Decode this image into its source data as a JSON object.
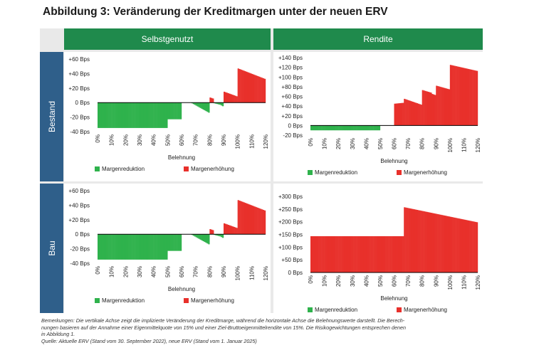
{
  "title": "Abbildung 3: Veränderung der Kreditmargen unter der neuen ERV",
  "columns": [
    "Selbstgenutzt",
    "Rendite"
  ],
  "rows": [
    "Bestand",
    "Bau"
  ],
  "colors": {
    "reduction": "#2fb24c",
    "increase": "#e8302b",
    "header_green": "#1f8a4c",
    "header_blue": "#2f5f8a"
  },
  "notes": {
    "line1": "Bemerkungen: Die vertikale Achse zeigt die implizierte Veränderung der Kreditmarge, während die horizontale Achse die Belehnungswerte darstellt. Die Berech-",
    "line2": "nungen basieren auf der Annahme einer Eigenmittelquote von 15% und einer Ziel-Bruttoeigenmittelrendite von 15%. Die Risikogewichtungen entsprechen denen",
    "line3": "in Abbildung 1.",
    "line4": "Quelle: Aktuelle ERV (Stand vom 30. September 2022), neue ERV (Stand vom 1. Januar 2025)"
  },
  "chart_data": [
    {
      "id": "bestand-selbstgenutzt",
      "type": "bar",
      "xlabel": "Belehnung",
      "ylim": [
        -40,
        60
      ],
      "yticks": [
        -40,
        -20,
        0,
        20,
        40,
        60
      ],
      "ytick_labels": [
        "-40 Bps",
        "-20 Bps",
        "0 Bps",
        "+20 Bps",
        "+40 Bps",
        "+60 Bps"
      ],
      "xlim": [
        0,
        120
      ],
      "xticks": [
        0,
        10,
        20,
        30,
        40,
        50,
        60,
        70,
        80,
        90,
        100,
        110,
        120
      ],
      "xtick_labels": [
        "0%",
        "10%",
        "20%",
        "30%",
        "40%",
        "50%",
        "60%",
        "70%",
        "80%",
        "90%",
        "100%",
        "110%",
        "120%"
      ],
      "legend": [
        "Margenreduktion",
        "Margenerhöhung"
      ],
      "segments": [
        {
          "x0": 0,
          "x1": 50,
          "y0": -35,
          "y1": -35
        },
        {
          "x0": 50,
          "x1": 60,
          "y0": -23,
          "y1": -23
        },
        {
          "x0": 67,
          "x1": 80,
          "y0": -1,
          "y1": -15
        },
        {
          "x0": 80,
          "x1": 83,
          "y0": 7,
          "y1": 5
        },
        {
          "x0": 83,
          "x1": 87,
          "y0": -1,
          "y1": -3
        },
        {
          "x0": 87,
          "x1": 90,
          "y0": -3,
          "y1": -6
        },
        {
          "x0": 90,
          "x1": 100,
          "y0": 15,
          "y1": 8
        },
        {
          "x0": 100,
          "x1": 120,
          "y0": 47,
          "y1": 32
        }
      ]
    },
    {
      "id": "bestand-rendite",
      "type": "bar",
      "xlabel": "Belehnung",
      "ylim": [
        -20,
        140
      ],
      "yticks": [
        -20,
        0,
        20,
        40,
        60,
        80,
        100,
        120,
        140
      ],
      "ytick_labels": [
        "-20 Bps",
        "0 Bps",
        "+20 Bps",
        "+40 Bps",
        "+60 Bps",
        "+80 Bps",
        "+100 Bps",
        "+120 Bps",
        "+140 Bps"
      ],
      "xlim": [
        0,
        120
      ],
      "xticks": [
        0,
        10,
        20,
        30,
        40,
        50,
        60,
        70,
        80,
        90,
        100,
        110,
        120
      ],
      "xtick_labels": [
        "0%",
        "10%",
        "20%",
        "30%",
        "40%",
        "50%",
        "60%",
        "70%",
        "80%",
        "90%",
        "100%",
        "110%",
        "120%"
      ],
      "legend": [
        "Margenreduktion",
        "Margenerhöhung"
      ],
      "segments": [
        {
          "x0": 0,
          "x1": 50,
          "y0": -10,
          "y1": -10
        },
        {
          "x0": 60,
          "x1": 67,
          "y0": 45,
          "y1": 47
        },
        {
          "x0": 67,
          "x1": 80,
          "y0": 55,
          "y1": 42
        },
        {
          "x0": 80,
          "x1": 87,
          "y0": 73,
          "y1": 67
        },
        {
          "x0": 87,
          "x1": 90,
          "y0": 65,
          "y1": 62
        },
        {
          "x0": 90,
          "x1": 100,
          "y0": 82,
          "y1": 74
        },
        {
          "x0": 100,
          "x1": 120,
          "y0": 125,
          "y1": 112
        }
      ]
    },
    {
      "id": "bau-selbstgenutzt",
      "type": "bar",
      "xlabel": "Belehnung",
      "ylim": [
        -40,
        60
      ],
      "yticks": [
        -40,
        -20,
        0,
        20,
        40,
        60
      ],
      "ytick_labels": [
        "-40 Bps",
        "-20 Bps",
        "0 Bps",
        "+20 Bps",
        "+40 Bps",
        "+60 Bps"
      ],
      "xlim": [
        0,
        120
      ],
      "xticks": [
        0,
        10,
        20,
        30,
        40,
        50,
        60,
        70,
        80,
        90,
        100,
        110,
        120
      ],
      "xtick_labels": [
        "0%",
        "10%",
        "20%",
        "30%",
        "40%",
        "50%",
        "60%",
        "70%",
        "80%",
        "90%",
        "100%",
        "110%",
        "120%"
      ],
      "legend": [
        "Margenreduktion",
        "Margenerhöhung"
      ],
      "segments": [
        {
          "x0": 0,
          "x1": 50,
          "y0": -35,
          "y1": -35
        },
        {
          "x0": 50,
          "x1": 60,
          "y0": -23,
          "y1": -23
        },
        {
          "x0": 67,
          "x1": 80,
          "y0": -1,
          "y1": -15
        },
        {
          "x0": 80,
          "x1": 83,
          "y0": 7,
          "y1": 5
        },
        {
          "x0": 83,
          "x1": 87,
          "y0": -1,
          "y1": -3
        },
        {
          "x0": 87,
          "x1": 90,
          "y0": -3,
          "y1": -6
        },
        {
          "x0": 90,
          "x1": 100,
          "y0": 15,
          "y1": 8
        },
        {
          "x0": 100,
          "x1": 120,
          "y0": 47,
          "y1": 32
        }
      ]
    },
    {
      "id": "bau-rendite",
      "type": "bar",
      "xlabel": "Belehnung",
      "ylim": [
        0,
        300
      ],
      "yticks": [
        0,
        50,
        100,
        150,
        200,
        250,
        300
      ],
      "ytick_labels": [
        "0 Bps",
        "+50 Bps",
        "+100 Bps",
        "+150 Bps",
        "+200 Bps",
        "+250 Bps",
        "+300 Bps"
      ],
      "xlim": [
        0,
        120
      ],
      "xticks": [
        0,
        10,
        20,
        30,
        40,
        50,
        60,
        70,
        80,
        90,
        100,
        110,
        120
      ],
      "xtick_labels": [
        "0%",
        "10%",
        "20%",
        "30%",
        "40%",
        "50%",
        "60%",
        "70%",
        "80%",
        "90%",
        "100%",
        "110%",
        "120%"
      ],
      "legend": [
        "Margenreduktion",
        "Margenerhöhung"
      ],
      "segments": [
        {
          "x0": 0,
          "x1": 67,
          "y0": 143,
          "y1": 143
        },
        {
          "x0": 67,
          "x1": 120,
          "y0": 257,
          "y1": 197
        }
      ]
    }
  ]
}
